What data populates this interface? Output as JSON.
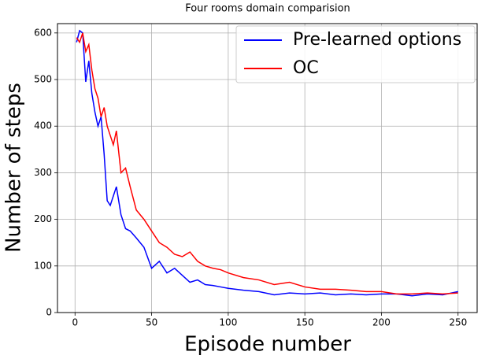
{
  "chart_data": {
    "type": "line",
    "title": "Four rooms domain comparision",
    "x_label": "Episode number",
    "y_label": "Number of steps",
    "x": [
      1,
      3,
      5,
      7,
      9,
      11,
      13,
      15,
      17,
      19,
      21,
      23,
      25,
      27,
      30,
      33,
      36,
      40,
      45,
      50,
      55,
      60,
      65,
      70,
      75,
      80,
      85,
      90,
      95,
      100,
      110,
      120,
      130,
      140,
      150,
      160,
      170,
      180,
      190,
      200,
      210,
      220,
      230,
      240,
      250
    ],
    "series": [
      {
        "name": "Pre-learned options",
        "color": "#0000ff",
        "values": [
          580,
          605,
          600,
          495,
          540,
          470,
          430,
          400,
          420,
          340,
          240,
          230,
          250,
          270,
          210,
          180,
          175,
          160,
          140,
          95,
          110,
          85,
          95,
          80,
          65,
          70,
          60,
          58,
          55,
          52,
          48,
          45,
          38,
          42,
          40,
          42,
          38,
          40,
          38,
          40,
          40,
          36,
          40,
          38,
          45
        ]
      },
      {
        "name": "OC",
        "color": "#ff0000",
        "values": [
          590,
          580,
          600,
          560,
          575,
          520,
          480,
          460,
          420,
          440,
          400,
          380,
          360,
          390,
          300,
          310,
          270,
          220,
          200,
          175,
          150,
          140,
          125,
          120,
          130,
          110,
          100,
          95,
          92,
          85,
          75,
          70,
          60,
          65,
          55,
          50,
          50,
          48,
          45,
          45,
          40,
          40,
          42,
          40,
          42
        ]
      }
    ],
    "xlim": [
      -11.45,
      262.45
    ],
    "xticks": [
      0,
      50,
      100,
      150,
      200,
      250
    ],
    "ylim": [
      0,
      620
    ],
    "yticks": [
      0,
      100,
      200,
      300,
      400,
      500,
      600
    ],
    "grid": true,
    "legend": "upper right"
  }
}
